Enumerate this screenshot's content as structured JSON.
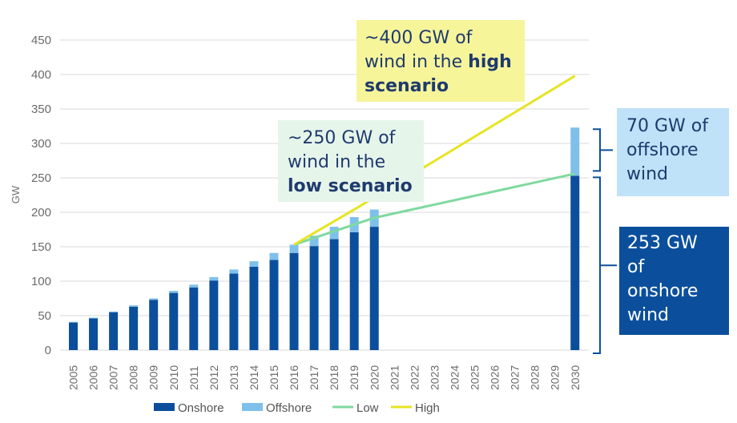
{
  "chart_data": {
    "type": "bar",
    "ylabel": "GW",
    "ylim": [
      0,
      450
    ],
    "yticks": [
      0,
      50,
      100,
      150,
      200,
      250,
      300,
      350,
      400,
      450
    ],
    "grid": true,
    "categories": [
      "2005",
      "2006",
      "2007",
      "2008",
      "2009",
      "2010",
      "2011",
      "2012",
      "2013",
      "2014",
      "2015",
      "2016",
      "2017",
      "2018",
      "2019",
      "2020",
      "2021",
      "2022",
      "2023",
      "2024",
      "2025",
      "2026",
      "2027",
      "2028",
      "2029",
      "2030"
    ],
    "series": [
      {
        "name": "Onshore",
        "type": "stacked-bar",
        "color": "#0b4f9c",
        "values": [
          40,
          46,
          55,
          63,
          73,
          83,
          91,
          101,
          111,
          121,
          131,
          141,
          151,
          161,
          171,
          179,
          null,
          null,
          null,
          null,
          null,
          null,
          null,
          null,
          null,
          253
        ]
      },
      {
        "name": "Offshore",
        "type": "stacked-bar",
        "color": "#7fc0ea",
        "values": [
          1,
          1,
          1,
          2,
          2,
          3,
          4,
          5,
          6,
          8,
          10,
          12,
          15,
          18,
          22,
          25,
          null,
          null,
          null,
          null,
          null,
          null,
          null,
          null,
          null,
          70
        ]
      },
      {
        "name": "Low",
        "type": "line",
        "color": "#7fd9a0",
        "points": [
          [
            "2016",
            153
          ],
          [
            "2020",
            192
          ],
          [
            "2030",
            256
          ]
        ]
      },
      {
        "name": "High",
        "type": "line",
        "color": "#e6e422",
        "points": [
          [
            "2016",
            153
          ],
          [
            "2019",
            204
          ],
          [
            "2030",
            398
          ]
        ]
      }
    ],
    "legend": {
      "position": "bottom",
      "items": [
        "Onshore",
        "Offshore",
        "Low",
        "High"
      ]
    },
    "annotations": {
      "high": {
        "line1": "~400 GW of",
        "line2_pre": "wind in the ",
        "line2_bold": "high",
        "line3_bold": "scenario"
      },
      "low": {
        "line1": "~250 GW of",
        "line2": "wind in the",
        "line3_bold": "low scenario"
      },
      "offshore": {
        "line1": "70 GW of",
        "line2": "offshore",
        "line3": "wind"
      },
      "onshore": {
        "line1": "253 GW",
        "line2": "of",
        "line3": "onshore",
        "line4": "wind"
      }
    }
  }
}
